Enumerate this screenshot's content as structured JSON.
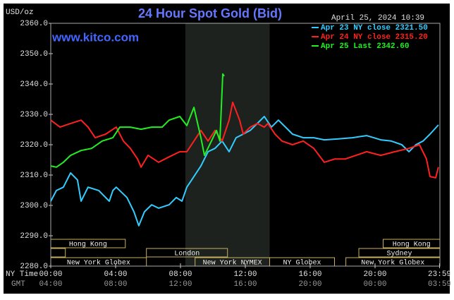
{
  "chart_data": {
    "type": "line",
    "title": "24 Hour Spot Gold (Bid)",
    "site": "www.kitco.com",
    "timestamp": "April 25, 2024 10:39",
    "y_label": "USD/oz",
    "x_label": "NY Time",
    "x2_label": "GMT",
    "xlim": [
      0,
      24
    ],
    "ylim": [
      2280,
      2360
    ],
    "yticks": [
      {
        "value": 2360,
        "label": "2360.0"
      },
      {
        "value": 2350,
        "label": "2350.0"
      },
      {
        "value": 2340,
        "label": "2340.0"
      },
      {
        "value": 2330,
        "label": "2330.0"
      },
      {
        "value": 2320,
        "label": "2320.0"
      },
      {
        "value": 2310,
        "label": "2310.0"
      },
      {
        "value": 2300,
        "label": "2300.0"
      },
      {
        "value": 2290,
        "label": "2290.0"
      },
      {
        "value": 2280,
        "label": "2280.0"
      }
    ],
    "xticks": [
      {
        "value": 0,
        "label": "00:00"
      },
      {
        "value": 4,
        "label": "04:00"
      },
      {
        "value": 8,
        "label": "08:00"
      },
      {
        "value": 12,
        "label": "12:00"
      },
      {
        "value": 16,
        "label": "16:00"
      },
      {
        "value": 20,
        "label": "20:00"
      },
      {
        "value": 23.98,
        "label": "23:59"
      }
    ],
    "x2ticks": [
      {
        "value": 0,
        "label": "04:00"
      },
      {
        "value": 4,
        "label": "08:00"
      },
      {
        "value": 8,
        "label": "12:00"
      },
      {
        "value": 12,
        "label": "16:00"
      },
      {
        "value": 16,
        "label": "20:00"
      },
      {
        "value": 20,
        "label": "00:00"
      },
      {
        "value": 23.98,
        "label": "03:59"
      }
    ],
    "shaded": [
      8.3,
      13.5
    ],
    "sessions": [
      {
        "name": "Hong Kong",
        "start": 0,
        "end": 4.6,
        "row": 0
      },
      {
        "name": "Hong Kong",
        "start": 20.5,
        "end": 24,
        "row": 0
      },
      {
        "name": null,
        "start": 0,
        "end": 0.9,
        "row": 1
      },
      {
        "name": "London",
        "start": 5.9,
        "end": 10.9,
        "row": 1
      },
      {
        "name": "Sydney",
        "start": 19,
        "end": 24,
        "row": 1
      },
      {
        "name": "New York Globex",
        "start": 0,
        "end": 5.9,
        "row": 2
      },
      {
        "name": "New York NYMEX",
        "start": 8.9,
        "end": 13.5,
        "row": 2
      },
      {
        "name": "NY Globex",
        "start": 13.5,
        "end": 17.5,
        "row": 2
      },
      {
        "name": "New York Globex",
        "start": 18.2,
        "end": 24,
        "row": 2
      }
    ],
    "series": [
      {
        "name": "Apr 23 NY close 2321.50",
        "color": "#33ccff",
        "x": [
          0,
          0.35,
          0.78,
          1.22,
          1.65,
          1.87,
          2.3,
          2.96,
          3.61,
          3.83,
          4.04,
          4.7,
          5.13,
          5.43,
          5.78,
          6.22,
          6.65,
          7.3,
          7.74,
          8.09,
          8.39,
          8.83,
          9.26,
          9.7,
          10.13,
          10.57,
          11.0,
          11.43,
          11.87,
          12.3,
          12.74,
          13.17,
          13.61,
          14.04,
          14.48,
          14.91,
          15.57,
          16.22,
          16.87,
          17.74,
          18.61,
          19.48,
          20.35,
          21.0,
          21.65,
          22.09,
          22.52,
          22.96,
          23.39,
          23.91
        ],
        "values": [
          2301.4,
          2304.9,
          2306.0,
          2310.7,
          2308.4,
          2301.4,
          2306.0,
          2304.9,
          2301.4,
          2304.9,
          2306.0,
          2302.6,
          2297.9,
          2293.3,
          2297.9,
          2300.2,
          2299.1,
          2300.2,
          2302.6,
          2301.4,
          2306.0,
          2309.5,
          2313.0,
          2317.7,
          2318.8,
          2321.2,
          2317.7,
          2322.3,
          2323.5,
          2324.7,
          2327.0,
          2329.3,
          2325.8,
          2328.1,
          2325.8,
          2323.5,
          2322.3,
          2322.3,
          2321.6,
          2321.9,
          2322.3,
          2323.0,
          2321.6,
          2321.2,
          2320.0,
          2317.7,
          2320.0,
          2321.2,
          2323.5,
          2326.5
        ]
      },
      {
        "name": "Apr 24 NY close 2315.20",
        "color": "#ff2020",
        "x": [
          0,
          0.57,
          1.22,
          1.87,
          2.3,
          2.74,
          3.39,
          4.04,
          4.48,
          4.91,
          5.35,
          5.57,
          6.0,
          6.65,
          7.3,
          7.96,
          8.39,
          8.83,
          9.26,
          9.7,
          10.13,
          10.57,
          11.0,
          11.22,
          11.65,
          11.87,
          12.3,
          12.74,
          13.17,
          13.39,
          13.83,
          14.26,
          14.91,
          15.57,
          16.22,
          16.87,
          17.52,
          18.17,
          18.83,
          19.48,
          20.35,
          21.22,
          22.09,
          22.74,
          23.17,
          23.39,
          23.74,
          23.91
        ],
        "values": [
          2328.1,
          2325.8,
          2327.0,
          2328.1,
          2325.8,
          2322.3,
          2323.5,
          2325.8,
          2321.2,
          2318.8,
          2315.3,
          2312.6,
          2316.5,
          2314.2,
          2316.0,
          2317.7,
          2317.7,
          2321.2,
          2324.7,
          2321.2,
          2324.7,
          2321.2,
          2328.1,
          2334.0,
          2328.1,
          2323.5,
          2325.8,
          2327.0,
          2325.8,
          2327.0,
          2323.5,
          2321.2,
          2320.0,
          2321.2,
          2318.8,
          2314.2,
          2315.3,
          2315.3,
          2316.5,
          2317.7,
          2316.5,
          2317.7,
          2318.8,
          2320.0,
          2315.3,
          2309.5,
          2309.1,
          2312.6
        ]
      },
      {
        "name": "Apr 25 Last 2342.60",
        "color": "#22ee22",
        "x": [
          0,
          0.35,
          0.78,
          1.22,
          1.87,
          2.52,
          3.17,
          3.83,
          4.26,
          4.91,
          5.57,
          6.22,
          6.87,
          7.3,
          7.96,
          8.39,
          8.83,
          9.26,
          9.48,
          9.91,
          10.22,
          10.43,
          10.61,
          10.7
        ],
        "values": [
          2313.0,
          2312.6,
          2314.2,
          2316.5,
          2318.1,
          2318.8,
          2321.2,
          2322.3,
          2325.8,
          2325.8,
          2325.1,
          2325.8,
          2325.8,
          2328.1,
          2329.3,
          2326.3,
          2332.3,
          2322.3,
          2316.5,
          2321.2,
          2324.7,
          2321.2,
          2343.3,
          2342.6
        ]
      }
    ]
  }
}
